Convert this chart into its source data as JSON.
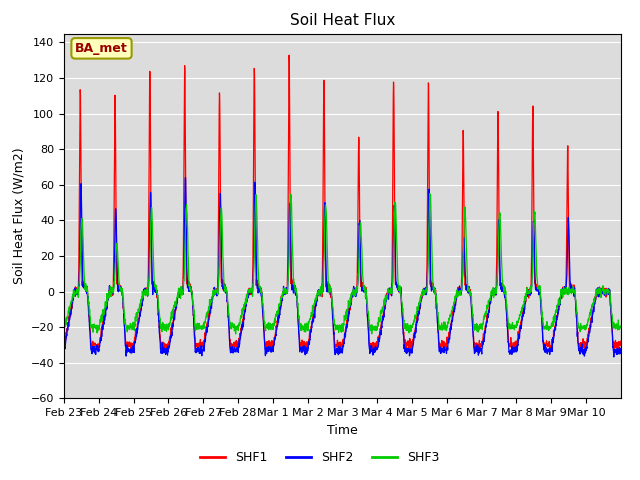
{
  "title": "Soil Heat Flux",
  "xlabel": "Time",
  "ylabel": "Soil Heat Flux (W/m2)",
  "ylim": [
    -60,
    145
  ],
  "yticks": [
    -60,
    -40,
    -20,
    0,
    20,
    40,
    60,
    80,
    100,
    120,
    140
  ],
  "line_colors": {
    "SHF1": "#ff0000",
    "SHF2": "#0000ff",
    "SHF3": "#00cc00"
  },
  "line_widths": {
    "SHF1": 0.9,
    "SHF2": 0.9,
    "SHF3": 0.9
  },
  "annotation_text": "BA_met",
  "background_color": "#dcdcdc",
  "title_fontsize": 11,
  "axis_label_fontsize": 9,
  "tick_label_fontsize": 8,
  "legend_fontsize": 9,
  "num_days": 16,
  "points_per_day": 144,
  "date_labels": [
    "Feb 23",
    "Feb 24",
    "Feb 25",
    "Feb 26",
    "Feb 27",
    "Feb 28",
    "Mar 1",
    "Mar 2",
    "Mar 3",
    "Mar 4",
    "Mar 5",
    "Mar 6",
    "Mar 7",
    "Mar 8",
    "Mar 9",
    "Mar 10"
  ],
  "shf1_peaks": [
    115,
    111,
    124,
    127,
    113,
    127,
    133,
    119,
    87,
    120,
    119,
    89,
    101,
    105,
    82,
    0
  ],
  "shf2_peaks": [
    60,
    46,
    55,
    65,
    55,
    62,
    52,
    50,
    40,
    48,
    58,
    30,
    40,
    40,
    42,
    0
  ],
  "shf3_peaks": [
    41,
    28,
    47,
    49,
    48,
    53,
    55,
    49,
    38,
    50,
    55,
    45,
    45,
    45,
    0,
    0
  ],
  "shf1_night": -30,
  "shf2_night": -33,
  "shf3_night": -20
}
